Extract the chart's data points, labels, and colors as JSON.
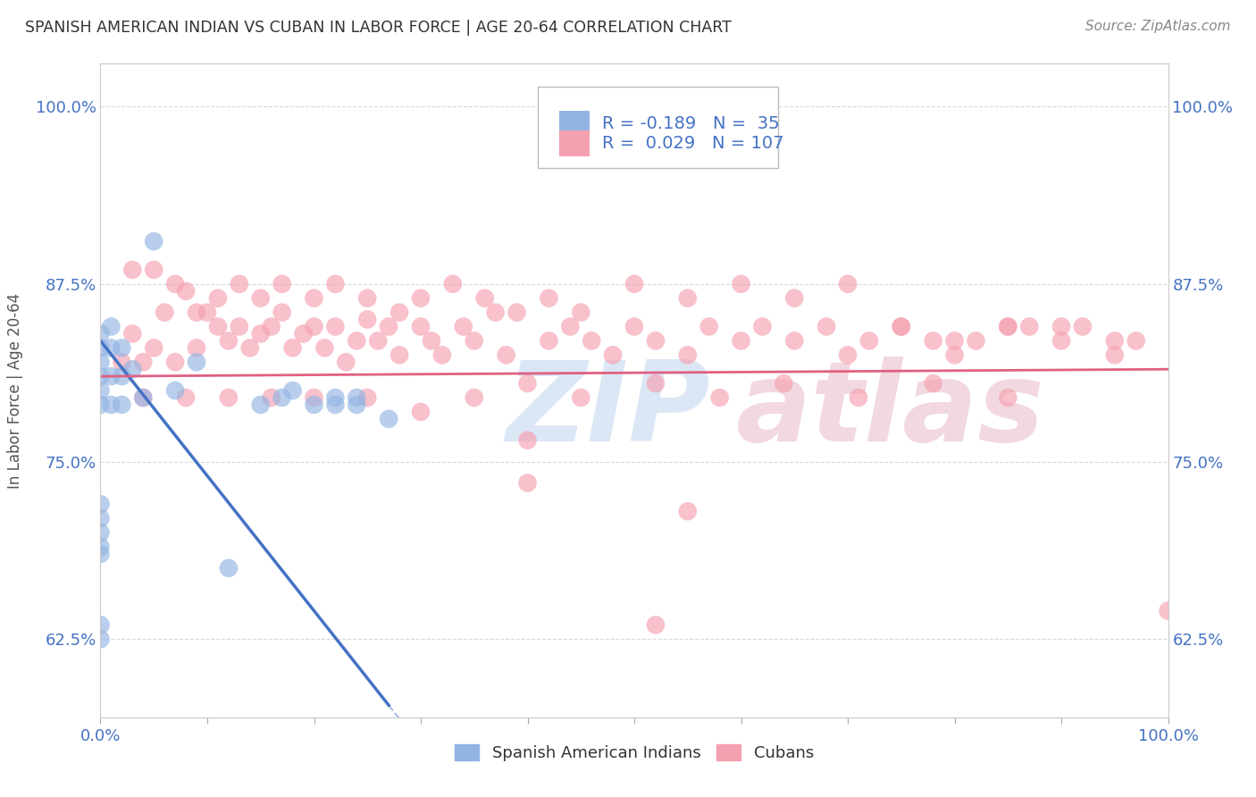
{
  "title": "SPANISH AMERICAN INDIAN VS CUBAN IN LABOR FORCE | AGE 20-64 CORRELATION CHART",
  "source": "Source: ZipAtlas.com",
  "ylabel": "In Labor Force | Age 20-64",
  "xlim": [
    0.0,
    1.0
  ],
  "ylim": [
    0.57,
    1.03
  ],
  "yticks": [
    0.625,
    0.75,
    0.875,
    1.0
  ],
  "ytick_labels": [
    "62.5%",
    "75.0%",
    "87.5%",
    "100.0%"
  ],
  "xticks": [
    0.0,
    0.1,
    0.2,
    0.3,
    0.4,
    0.5,
    0.6,
    0.7,
    0.8,
    0.9,
    1.0
  ],
  "xtick_labels": [
    "0.0%",
    "",
    "",
    "",
    "",
    "",
    "",
    "",
    "",
    "",
    "100.0%"
  ],
  "color_blue": "#92b4e3",
  "color_pink": "#f5a0b0",
  "line_blue": "#4472c4",
  "line_pink": "#e06080",
  "bg_color": "#ffffff",
  "grid_color": "#d8d8d8",
  "title_color": "#333333",
  "label_color": "#555555",
  "tick_color": "#4472c4",
  "blue_x": [
    0.0,
    0.0,
    0.0,
    0.0,
    0.0,
    0.0,
    0.0,
    0.0,
    0.0,
    0.0,
    0.0,
    0.01,
    0.01,
    0.01,
    0.01,
    0.02,
    0.02,
    0.02,
    0.03,
    0.04,
    0.05,
    0.07,
    0.09,
    0.12,
    0.15,
    0.17,
    0.18,
    0.2,
    0.22,
    0.22,
    0.24,
    0.24,
    0.27,
    0.0,
    0.0
  ],
  "blue_y": [
    0.79,
    0.8,
    0.81,
    0.82,
    0.83,
    0.84,
    0.685,
    0.69,
    0.7,
    0.71,
    0.72,
    0.79,
    0.81,
    0.83,
    0.845,
    0.79,
    0.81,
    0.83,
    0.815,
    0.795,
    0.905,
    0.8,
    0.82,
    0.675,
    0.79,
    0.795,
    0.8,
    0.79,
    0.795,
    0.79,
    0.79,
    0.795,
    0.78,
    0.625,
    0.635
  ],
  "pink_x": [
    0.02,
    0.03,
    0.04,
    0.05,
    0.06,
    0.07,
    0.08,
    0.09,
    0.1,
    0.11,
    0.12,
    0.13,
    0.14,
    0.15,
    0.16,
    0.17,
    0.18,
    0.19,
    0.2,
    0.21,
    0.22,
    0.23,
    0.24,
    0.25,
    0.26,
    0.27,
    0.28,
    0.3,
    0.31,
    0.32,
    0.34,
    0.35,
    0.37,
    0.38,
    0.4,
    0.42,
    0.44,
    0.46,
    0.48,
    0.5,
    0.52,
    0.55,
    0.57,
    0.6,
    0.62,
    0.65,
    0.68,
    0.7,
    0.72,
    0.75,
    0.78,
    0.8,
    0.82,
    0.85,
    0.87,
    0.9,
    0.92,
    0.95,
    0.97,
    1.0,
    0.03,
    0.05,
    0.07,
    0.09,
    0.11,
    0.13,
    0.15,
    0.17,
    0.2,
    0.22,
    0.25,
    0.28,
    0.3,
    0.33,
    0.36,
    0.39,
    0.42,
    0.45,
    0.5,
    0.55,
    0.6,
    0.65,
    0.7,
    0.75,
    0.8,
    0.85,
    0.9,
    0.95,
    0.04,
    0.08,
    0.12,
    0.16,
    0.2,
    0.25,
    0.3,
    0.35,
    0.4,
    0.45,
    0.52,
    0.58,
    0.64,
    0.71,
    0.78,
    0.85,
    0.55,
    0.4,
    0.52
  ],
  "pink_y": [
    0.82,
    0.84,
    0.82,
    0.83,
    0.855,
    0.82,
    0.87,
    0.83,
    0.855,
    0.845,
    0.835,
    0.845,
    0.83,
    0.84,
    0.845,
    0.855,
    0.83,
    0.84,
    0.845,
    0.83,
    0.845,
    0.82,
    0.835,
    0.85,
    0.835,
    0.845,
    0.825,
    0.845,
    0.835,
    0.825,
    0.845,
    0.835,
    0.855,
    0.825,
    0.735,
    0.835,
    0.845,
    0.835,
    0.825,
    0.845,
    0.835,
    0.825,
    0.845,
    0.835,
    0.845,
    0.835,
    0.845,
    0.825,
    0.835,
    0.845,
    0.835,
    0.825,
    0.835,
    0.845,
    0.845,
    0.835,
    0.845,
    0.825,
    0.835,
    0.645,
    0.885,
    0.885,
    0.875,
    0.855,
    0.865,
    0.875,
    0.865,
    0.875,
    0.865,
    0.875,
    0.865,
    0.855,
    0.865,
    0.875,
    0.865,
    0.855,
    0.865,
    0.855,
    0.875,
    0.865,
    0.875,
    0.865,
    0.875,
    0.845,
    0.835,
    0.845,
    0.845,
    0.835,
    0.795,
    0.795,
    0.795,
    0.795,
    0.795,
    0.795,
    0.785,
    0.795,
    0.805,
    0.795,
    0.805,
    0.795,
    0.805,
    0.795,
    0.805,
    0.795,
    0.715,
    0.765,
    0.635
  ]
}
